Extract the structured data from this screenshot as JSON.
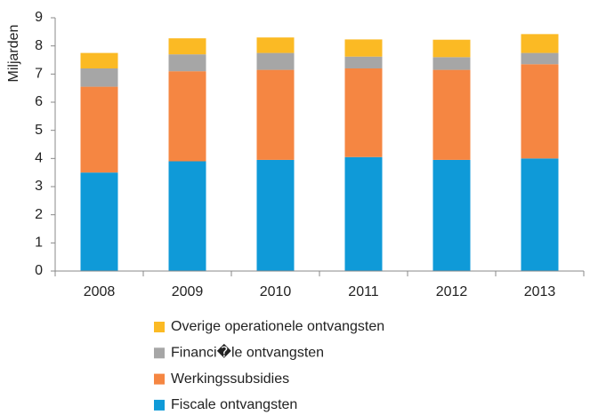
{
  "chart_data": {
    "type": "stacked_bar",
    "y_label": "Miljarden",
    "categories": [
      "2008",
      "2009",
      "2010",
      "2011",
      "2012",
      "2013"
    ],
    "series": [
      {
        "name": "Fiscale ontvangsten",
        "color": "#0f9ad8",
        "values": [
          3.5,
          3.9,
          3.95,
          4.05,
          3.95,
          4.0
        ]
      },
      {
        "name": "Werkingssubsidies",
        "color": "#f58642",
        "values": [
          3.05,
          3.2,
          3.2,
          3.15,
          3.2,
          3.35
        ]
      },
      {
        "name": "Financi�le ontvangsten",
        "color": "#a6a6a6",
        "values": [
          0.65,
          0.6,
          0.6,
          0.42,
          0.45,
          0.4
        ]
      },
      {
        "name": "Overige operationele ontvangsten",
        "color": "#fbba24",
        "values": [
          0.55,
          0.57,
          0.55,
          0.61,
          0.62,
          0.67
        ]
      }
    ],
    "ylim": [
      0,
      9
    ],
    "yticks": [
      0,
      1,
      2,
      3,
      4,
      5,
      6,
      7,
      8,
      9
    ],
    "grid": false,
    "legend": "bottom"
  }
}
